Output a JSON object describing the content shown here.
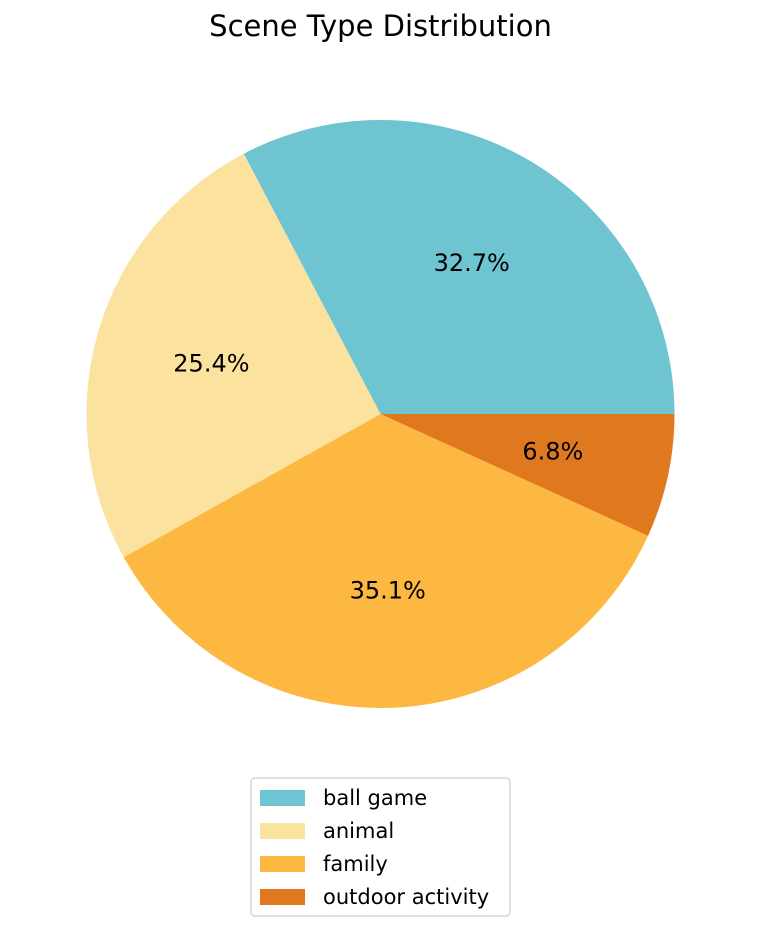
{
  "chart_data": {
    "type": "pie",
    "title": "Scene Type Distribution",
    "categories": [
      "ball game",
      "animal",
      "family",
      "outdoor activity"
    ],
    "values": [
      32.7,
      25.4,
      35.1,
      6.8
    ],
    "labels": [
      "32.7%",
      "25.4%",
      "35.1%",
      "6.8%"
    ],
    "colors": [
      "#6ec4d1",
      "#fbe29e",
      "#fdb841",
      "#e0781f"
    ],
    "start_angle_deg": 0,
    "direction": "counterclockwise",
    "legend": {
      "placement": "bottom-center",
      "entries": [
        "ball game",
        "animal",
        "family",
        "outdoor activity"
      ]
    }
  }
}
